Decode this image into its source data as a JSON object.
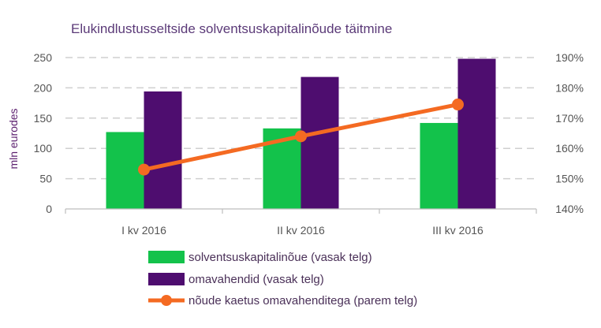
{
  "chart_data": {
    "type": "bar",
    "title": "Elukindlustusseltside solventsuskapitalinõude täitmine",
    "ylabel": "mln eurodes",
    "xlabel": "",
    "categories": [
      "I kv 2016",
      "II kv 2016",
      "III kv 2016"
    ],
    "ylim": [
      0,
      250
    ],
    "yticks": [
      0,
      50,
      100,
      150,
      200,
      250
    ],
    "y2lim": [
      140,
      190
    ],
    "y2ticks": [
      "140%",
      "150%",
      "160%",
      "170%",
      "180%",
      "190%"
    ],
    "grid": true,
    "legend_position": "bottom",
    "series": [
      {
        "name": "solventsuskapitalinõue (vasak telg)",
        "type": "bar",
        "axis": "left",
        "color": "#13c24b",
        "values": [
          127,
          133,
          142
        ]
      },
      {
        "name": "omavahendid (vasak telg)",
        "type": "bar",
        "axis": "left",
        "color": "#4e0d6f",
        "values": [
          194,
          218,
          248
        ]
      },
      {
        "name": "nõude kaetus omavahenditega (parem telg)",
        "type": "line",
        "axis": "right",
        "color": "#f46a22",
        "values": [
          153,
          164,
          174.5
        ]
      }
    ]
  }
}
